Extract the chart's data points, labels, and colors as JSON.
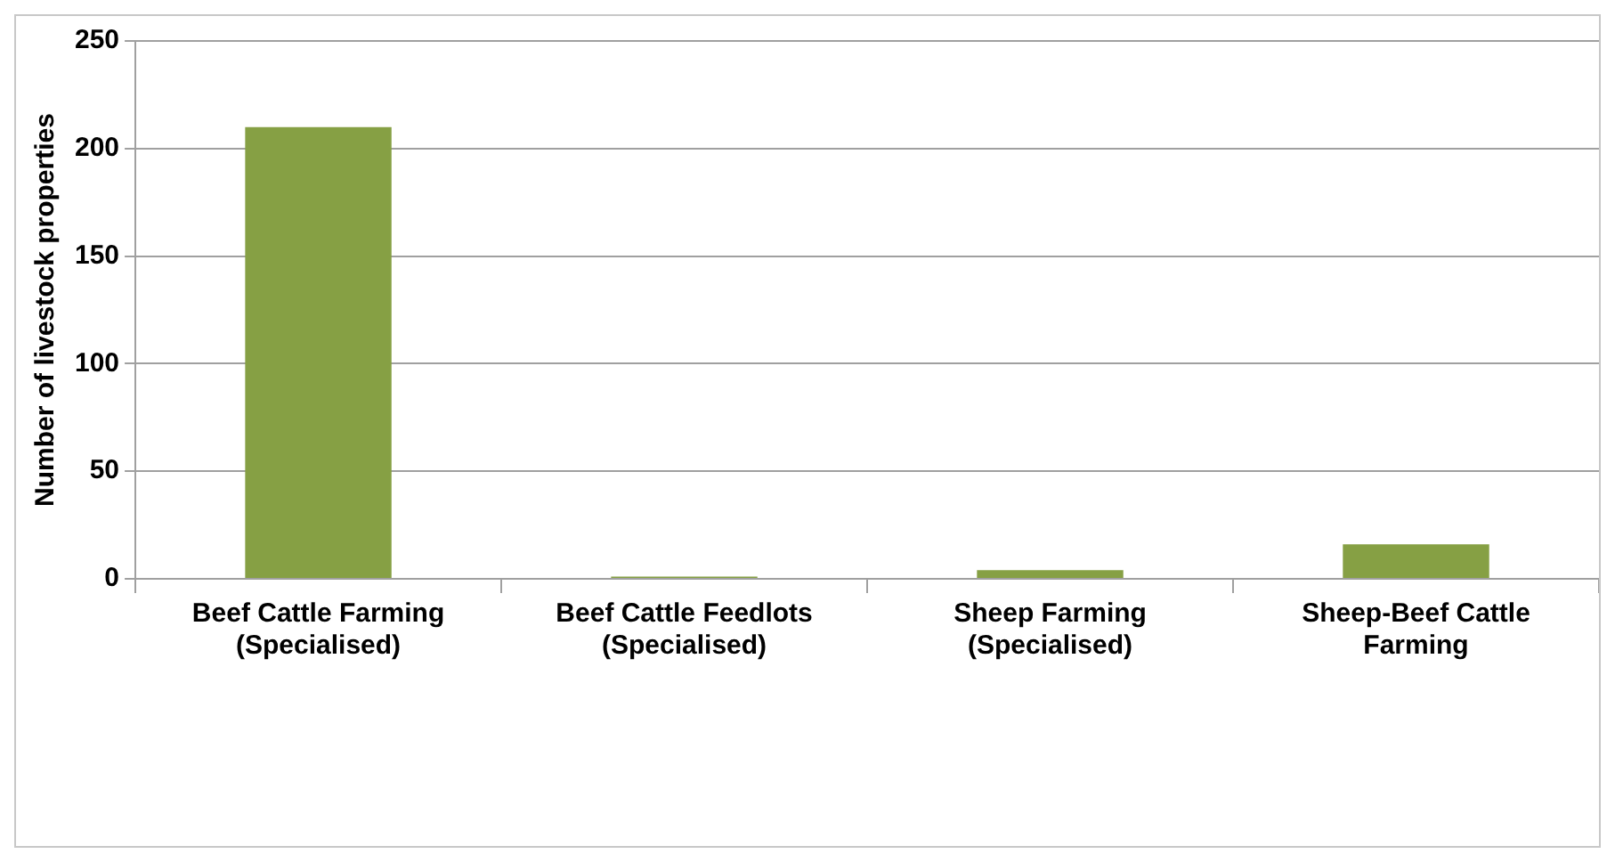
{
  "chart_data": {
    "type": "bar",
    "ylabel": "Number of livestock properties",
    "categories": [
      "Beef Cattle Farming\n(Specialised)",
      "Beef Cattle Feedlots\n(Specialised)",
      "Sheep Farming\n(Specialised)",
      "Sheep-Beef Cattle\nFarming"
    ],
    "values": [
      210,
      1,
      4,
      16
    ],
    "color": "#86a044",
    "ylim": [
      0,
      250
    ],
    "yticks": [
      0,
      50,
      100,
      150,
      200,
      250
    ],
    "grid": "y",
    "legend": false
  }
}
